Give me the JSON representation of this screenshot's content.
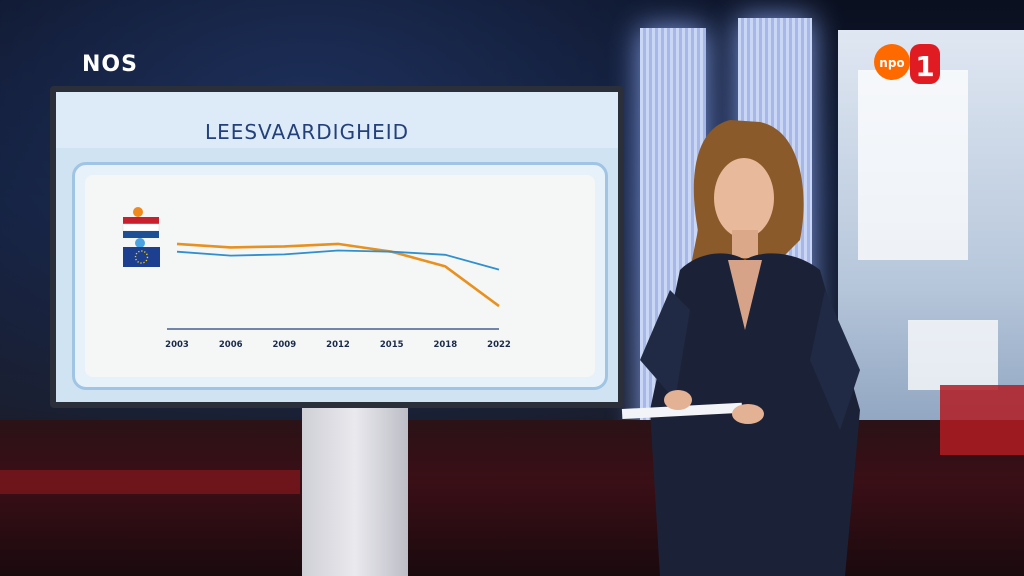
{
  "broadcaster_logo": "NOS",
  "channel_logo": {
    "text": "npo",
    "number": "1"
  },
  "chart_data": {
    "type": "line",
    "title": "LEESVAARDIGHEID",
    "x": [
      "2003",
      "2006",
      "2009",
      "2012",
      "2015",
      "2018",
      "2022"
    ],
    "series": [
      {
        "color": "#e8911f",
        "values": [
          10,
          5.5,
          6.8,
          10,
          0,
          -19,
          -70
        ]
      },
      {
        "color": "#2f8fcf",
        "values": [
          0,
          -5,
          -3.5,
          1.5,
          0,
          -4,
          -23
        ]
      }
    ],
    "legend": [
      {
        "icon": "netherlands-flag-icon",
        "color": "#e8911f"
      },
      {
        "icon": "eu-flag-icon",
        "color": "#2f8fcf"
      }
    ],
    "ylim": [
      -75,
      15
    ],
    "grid": false
  }
}
